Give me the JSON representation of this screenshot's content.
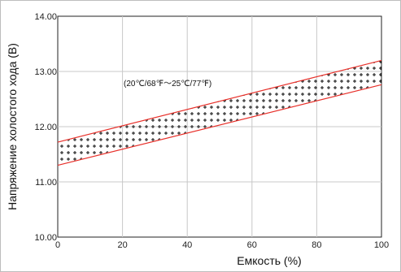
{
  "chart_data": {
    "type": "area",
    "xlabel": "Емкость (%)",
    "ylabel": "Напряжение холостого хода (В)",
    "xlim": [
      0,
      100
    ],
    "ylim": [
      10.0,
      14.0
    ],
    "x_ticks": [
      "0",
      "20",
      "40",
      "60",
      "80",
      "100"
    ],
    "y_ticks": [
      "10.00",
      "11.00",
      "12.00",
      "13.00",
      "14.00"
    ],
    "grid": true,
    "annotation": "(20℃/68℉～25℃/77℉)",
    "band": {
      "x": [
        0,
        100
      ],
      "upper": [
        11.72,
        13.2
      ],
      "lower": [
        11.3,
        12.76
      ],
      "line_color": "#e8302a",
      "fill_pattern": "crosses"
    }
  }
}
